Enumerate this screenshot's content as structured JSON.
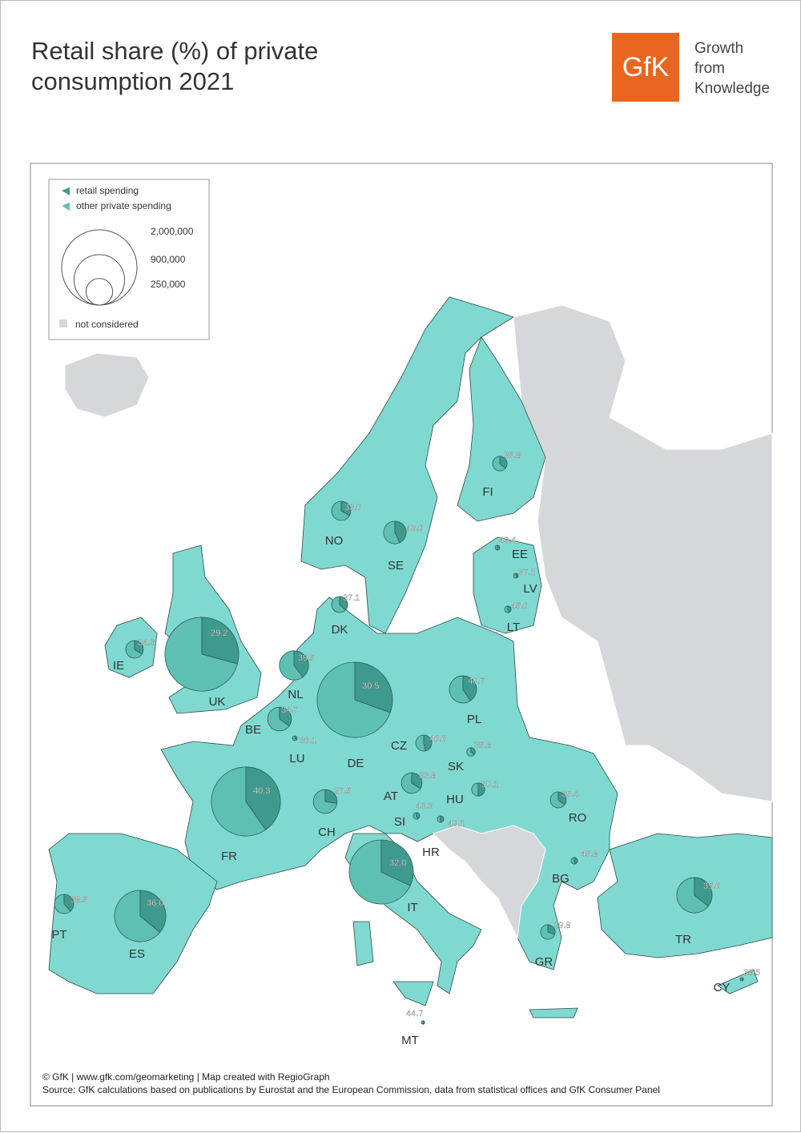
{
  "header": {
    "title": "Retail share (%) of private consumption 2021",
    "logo": "GfK",
    "tagline": [
      "Growth",
      "from",
      "Knowledge"
    ]
  },
  "chart_data": {
    "type": "pie-map",
    "series": [
      {
        "name": "retail spending",
        "color": "#3f9a8e"
      },
      {
        "name": "other private spending",
        "color": "#5ec0b3"
      }
    ],
    "size_legend": [
      {
        "value": 2000000,
        "label": "2,000,000"
      },
      {
        "value": 900000,
        "label": "900,000"
      },
      {
        "value": 250000,
        "label": "250,000"
      }
    ],
    "not_considered": "not considered",
    "categories": [
      "FI",
      "NO",
      "SE",
      "EE",
      "LV",
      "LT",
      "DK",
      "IE",
      "UK",
      "NL",
      "BE",
      "LU",
      "DE",
      "PL",
      "CZ",
      "SK",
      "AT",
      "CH",
      "HU",
      "SI",
      "HR",
      "RO",
      "FR",
      "IT",
      "BG",
      "GR",
      "ES",
      "PT",
      "TR",
      "CY",
      "MT"
    ],
    "values": [
      35.8,
      33,
      43,
      49.4,
      37.1,
      45,
      37.1,
      34.3,
      29.2,
      39.5,
      34.7,
      36.1,
      30.5,
      40.7,
      46.6,
      35.8,
      33.8,
      27.5,
      50.1,
      43.3,
      49.1,
      35.4,
      40.3,
      32,
      45.8,
      29.8,
      36,
      38.5,
      35.6,
      38.5,
      44.7
    ],
    "value_labels": [
      "35.8",
      "33.0",
      "43.0",
      "49.4",
      "37.1",
      "45.0",
      "37.1",
      "34.3",
      "29.2",
      "39.5",
      "34.7",
      "36.1",
      "30.5",
      "40.7",
      "46.6",
      "35.8",
      "33.8",
      "27.5",
      "50.1",
      "43.3",
      "49.1",
      "35.4",
      "40.3",
      "32.0",
      "45.8",
      "29.8",
      "36.0",
      "38.5",
      "35.6",
      "38.5",
      "44.7"
    ],
    "sizes": [
      75000,
      130000,
      180000,
      8000,
      8000,
      15000,
      90000,
      110000,
      1920000,
      300000,
      200000,
      8000,
      2000000,
      260000,
      90000,
      25000,
      150000,
      200000,
      60000,
      15000,
      15000,
      90000,
      1680000,
      1450000,
      15000,
      75000,
      930000,
      130000,
      440000,
      4000,
      4000
    ]
  },
  "footer": {
    "credit": "© GfK | www.gfk.com/geomarketing | Map created with RegioGraph",
    "source": "Source: GfK calculations based on publications by Eurostat and the European Commission, data from statistical offices and GfK Consumer Panel"
  }
}
